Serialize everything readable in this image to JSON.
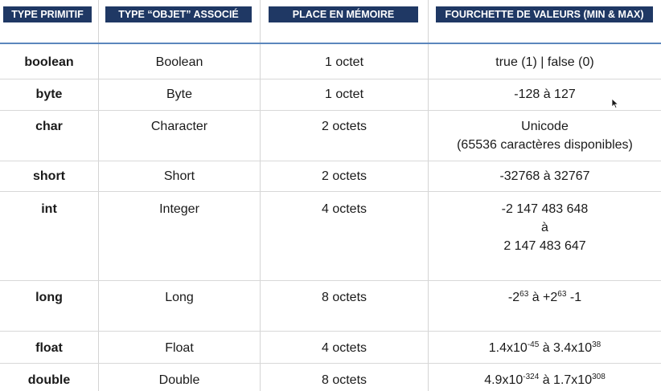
{
  "headers": {
    "primitive": "TYPE PRIMITIF",
    "object": "TYPE “OBJET” ASSOCIÉ",
    "memory": "PLACE EN MÉMOIRE",
    "range": "FOURCHETTE DE VALEURS (MIN & MAX)"
  },
  "rows": [
    {
      "type": "boolean",
      "object": "Boolean",
      "memory": "1 octet",
      "range": [
        "true (1) | false (0)"
      ]
    },
    {
      "type": "byte",
      "object": "Byte",
      "memory": "1 octet",
      "range": [
        "-128 à 127"
      ]
    },
    {
      "type": "char",
      "object": "Character",
      "memory": "2 octets",
      "range": [
        "Unicode",
        "(65536 caractères disponibles)"
      ]
    },
    {
      "type": "short",
      "object": "Short",
      "memory": "2 octets",
      "range": [
        "-32768 à 32767"
      ]
    },
    {
      "type": "int",
      "object": "Integer",
      "memory": "4 octets",
      "range": [
        "-2 147 483 648",
        "à",
        "2 147 483 647"
      ]
    },
    {
      "type": "long",
      "object": "Long",
      "memory": "8 octets",
      "range_parts": {
        "a": "-2",
        "a_exp": "63",
        "mid": " à +2",
        "b_exp": "63",
        "tail": " -1"
      }
    },
    {
      "type": "float",
      "object": "Float",
      "memory": "4 octets",
      "range_parts": {
        "a": "1.4x10",
        "a_exp": "-45",
        "mid": " à 3.4x10",
        "b_exp": "38",
        "tail": ""
      }
    },
    {
      "type": "double",
      "object": "Double",
      "memory": "8 octets",
      "range_parts": {
        "a": "4.9x10",
        "a_exp": "-324",
        "mid": " à 1.7x10",
        "b_exp": "308",
        "tail": ""
      }
    }
  ],
  "cursor": {
    "icon": "mouse-pointer-icon"
  }
}
